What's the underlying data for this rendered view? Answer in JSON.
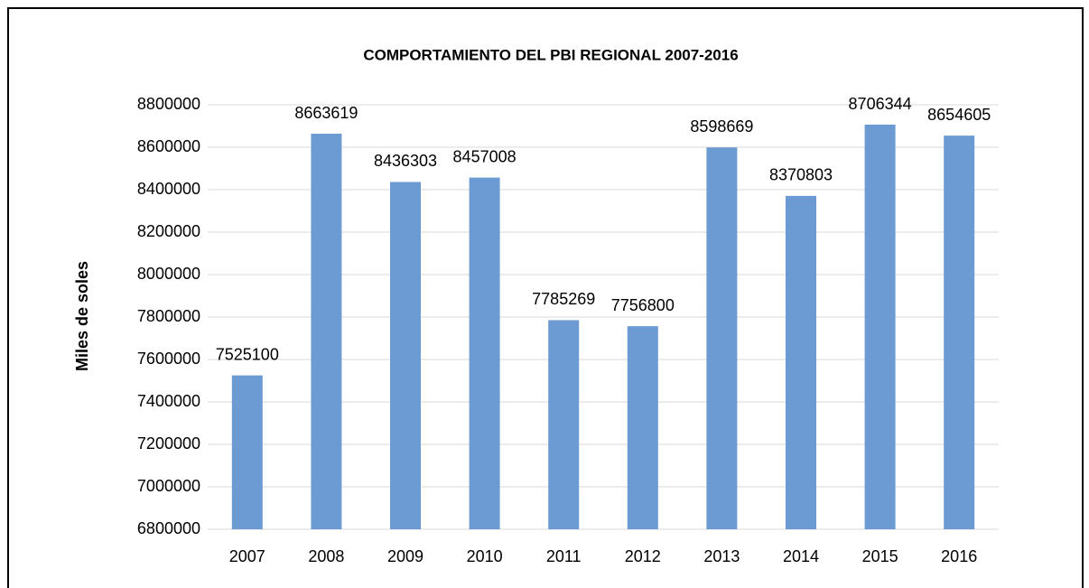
{
  "chart_data": {
    "type": "bar",
    "title": "COMPORTAMIENTO DEL PBI REGIONAL 2007-2016",
    "y_label": "Miles de soles",
    "categories": [
      "2007",
      "2008",
      "2009",
      "2010",
      "2011",
      "2012",
      "2013",
      "2014",
      "2015",
      "2016"
    ],
    "values": [
      7525100,
      8663619,
      8436303,
      8457008,
      7785269,
      7756800,
      8598669,
      8370803,
      8706344,
      8654605
    ],
    "color": "#6b9bd2",
    "ylim": [
      6800000,
      8800000
    ],
    "yticks": [
      6800000,
      7000000,
      7200000,
      7400000,
      7600000,
      7800000,
      8000000,
      8200000,
      8400000,
      8600000,
      8800000
    ],
    "grid": true
  }
}
